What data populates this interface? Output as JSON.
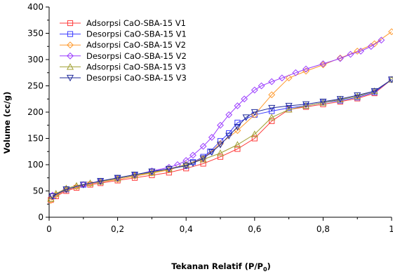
{
  "chart_data": {
    "type": "line",
    "xlabel_main": "Tekanan Relatif (P/P",
    "xlabel_sub": "0",
    "xlabel_close": ")",
    "ylabel": "Volume (cc/g)",
    "xlim": [
      0,
      1.0
    ],
    "ylim": [
      0,
      400
    ],
    "xticks": [
      0,
      0.2,
      0.4,
      0.6,
      0.8,
      1.0
    ],
    "xtick_labels": [
      "0",
      "0,2",
      "0,4",
      "0,6",
      "0,8",
      "1"
    ],
    "yticks": [
      0,
      50,
      100,
      150,
      200,
      250,
      300,
      350,
      400
    ],
    "ytick_labels": [
      "0",
      "50",
      "100",
      "150",
      "200",
      "250",
      "300",
      "350",
      "400"
    ],
    "grid": false,
    "legend_position": "top-left",
    "series": [
      {
        "name": "Adsorpsi CaO-SBA-15 V1",
        "color": "#ff3b3b",
        "marker": "square",
        "x": [
          0.005,
          0.02,
          0.05,
          0.08,
          0.12,
          0.15,
          0.2,
          0.25,
          0.3,
          0.35,
          0.4,
          0.45,
          0.5,
          0.55,
          0.6,
          0.65,
          0.7,
          0.75,
          0.8,
          0.85,
          0.9,
          0.95,
          1.0
        ],
        "y": [
          33,
          40,
          50,
          56,
          62,
          65,
          70,
          75,
          80,
          85,
          93,
          102,
          115,
          130,
          150,
          183,
          205,
          210,
          215,
          220,
          226,
          236,
          262
        ]
      },
      {
        "name": "Desorpsi CaO-SBA-15 V1",
        "color": "#3b3bff",
        "marker": "square",
        "x": [
          1.0,
          0.95,
          0.9,
          0.85,
          0.8,
          0.75,
          0.7,
          0.65,
          0.6,
          0.55,
          0.525,
          0.5,
          0.47,
          0.45,
          0.42,
          0.4,
          0.35,
          0.3,
          0.25,
          0.2,
          0.15,
          0.1,
          0.05,
          0.01
        ],
        "y": [
          262,
          238,
          228,
          222,
          218,
          212,
          208,
          202,
          195,
          180,
          160,
          145,
          125,
          115,
          105,
          98,
          92,
          87,
          80,
          74,
          68,
          62,
          53,
          40
        ]
      },
      {
        "name": "Adsorpsi CaO-SBA-15 V2",
        "color": "#ff9a2e",
        "marker": "diamond",
        "x": [
          0.005,
          0.02,
          0.05,
          0.08,
          0.12,
          0.15,
          0.2,
          0.25,
          0.3,
          0.35,
          0.4,
          0.45,
          0.5,
          0.55,
          0.6,
          0.65,
          0.7,
          0.75,
          0.8,
          0.85,
          0.9,
          0.95,
          1.0
        ],
        "y": [
          32,
          42,
          52,
          58,
          64,
          67,
          72,
          78,
          84,
          90,
          100,
          112,
          140,
          165,
          195,
          233,
          265,
          278,
          290,
          303,
          316,
          330,
          353
        ]
      },
      {
        "name": "Desorpsi CaO-SBA-15 V2",
        "color": "#9a3bff",
        "marker": "diamond",
        "x": [
          0.97,
          0.94,
          0.91,
          0.88,
          0.85,
          0.8,
          0.75,
          0.72,
          0.68,
          0.65,
          0.62,
          0.6,
          0.57,
          0.55,
          0.525,
          0.5,
          0.475,
          0.45,
          0.42,
          0.4,
          0.375,
          0.35,
          0.3,
          0.25,
          0.2,
          0.15,
          0.1,
          0.05,
          0.01
        ],
        "y": [
          337,
          325,
          316,
          310,
          302,
          292,
          282,
          275,
          265,
          258,
          250,
          242,
          225,
          212,
          195,
          175,
          152,
          135,
          118,
          108,
          100,
          95,
          88,
          80,
          74,
          68,
          62,
          53,
          42
        ]
      },
      {
        "name": "Adsorpsi CaO-SBA-15 V3",
        "color": "#a0a033",
        "marker": "triangle-up",
        "x": [
          0.005,
          0.02,
          0.05,
          0.08,
          0.12,
          0.15,
          0.2,
          0.25,
          0.3,
          0.35,
          0.4,
          0.45,
          0.5,
          0.55,
          0.6,
          0.65,
          0.7,
          0.75,
          0.8,
          0.85,
          0.9,
          0.95,
          1.0
        ],
        "y": [
          35,
          45,
          55,
          60,
          65,
          68,
          74,
          80,
          85,
          92,
          100,
          110,
          122,
          138,
          158,
          190,
          205,
          212,
          218,
          224,
          230,
          240,
          262
        ]
      },
      {
        "name": "Desorpsi CaO-SBA-15 V3",
        "color": "#1f2a9a",
        "marker": "triangle-down",
        "x": [
          1.0,
          0.95,
          0.9,
          0.85,
          0.8,
          0.75,
          0.7,
          0.65,
          0.6,
          0.575,
          0.55,
          0.525,
          0.5,
          0.475,
          0.45,
          0.42,
          0.4,
          0.35,
          0.3,
          0.25,
          0.2,
          0.15,
          0.1,
          0.05,
          0.01
        ],
        "y": [
          262,
          240,
          232,
          225,
          220,
          215,
          212,
          208,
          200,
          190,
          172,
          155,
          138,
          124,
          112,
          103,
          98,
          92,
          87,
          81,
          75,
          69,
          62,
          53,
          40
        ]
      }
    ]
  }
}
